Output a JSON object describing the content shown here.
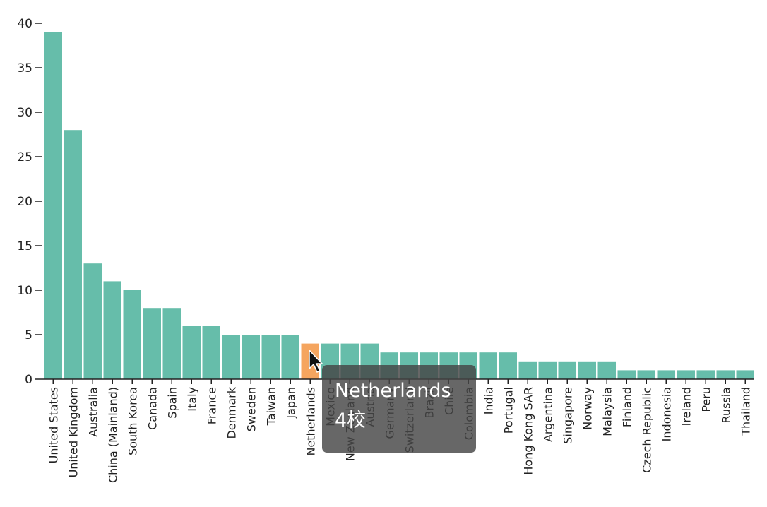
{
  "chart_data": {
    "type": "bar",
    "categories": [
      "United States",
      "United Kingdom",
      "Australia",
      "China (Mainland)",
      "South Korea",
      "Canada",
      "Spain",
      "Italy",
      "France",
      "Denmark",
      "Sweden",
      "Taiwan",
      "Japan",
      "Netherlands",
      "Mexico",
      "New Zealand",
      "Austria",
      "Germany",
      "Switzerland",
      "Brazil",
      "Chile",
      "Colombia",
      "India",
      "Portugal",
      "Hong Kong SAR",
      "Argentina",
      "Singapore",
      "Norway",
      "Malaysia",
      "Finland",
      "Czech Republic",
      "Indonesia",
      "Ireland",
      "Peru",
      "Russia",
      "Thailand"
    ],
    "values": [
      39,
      28,
      13,
      11,
      10,
      8,
      8,
      6,
      6,
      5,
      5,
      5,
      5,
      4,
      4,
      4,
      4,
      3,
      3,
      3,
      3,
      3,
      3,
      3,
      2,
      2,
      2,
      2,
      2,
      1,
      1,
      1,
      1,
      1,
      1,
      1
    ],
    "ylim": [
      0,
      40
    ],
    "yticks": [
      0,
      5,
      10,
      15,
      20,
      25,
      30,
      35,
      40
    ],
    "bar_color": "#66bdaa",
    "highlight_color": "#f5a55f",
    "highlighted_category": "Netherlands",
    "grid": false
  },
  "tooltip": {
    "name": "Netherlands",
    "value": "4校"
  }
}
